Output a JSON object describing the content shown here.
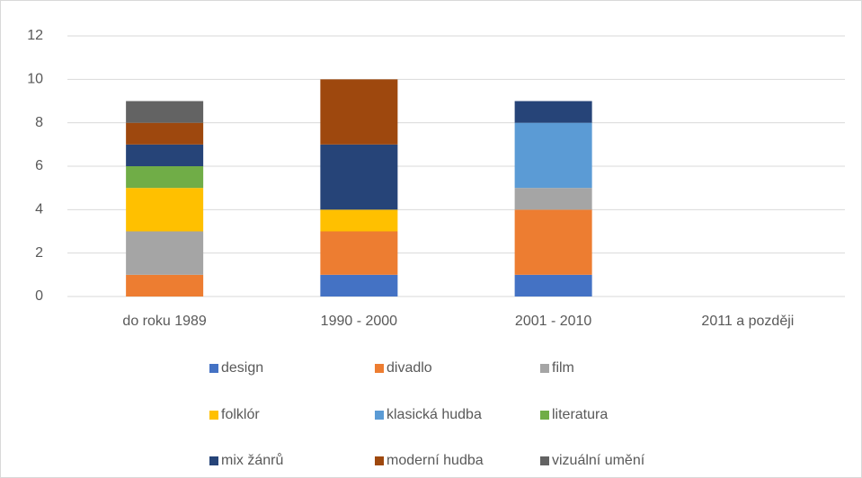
{
  "chart_data": {
    "type": "stacked_bar",
    "categories": [
      "do roku 1989",
      "1990 - 2000",
      "2001 - 2010",
      "2011 a později"
    ],
    "series": [
      {
        "name": "design",
        "color": "#4472c4",
        "values": [
          0,
          1,
          1,
          0
        ]
      },
      {
        "name": "divadlo",
        "color": "#ed7d31",
        "values": [
          1,
          2,
          3,
          0
        ]
      },
      {
        "name": "film",
        "color": "#a5a5a5",
        "values": [
          2,
          0,
          1,
          0
        ]
      },
      {
        "name": "folklór",
        "color": "#ffc000",
        "values": [
          2,
          1,
          0,
          0
        ]
      },
      {
        "name": "klasická hudba",
        "color": "#5b9bd5",
        "values": [
          0,
          0,
          3,
          0
        ]
      },
      {
        "name": "literatura",
        "color": "#70ad47",
        "values": [
          1,
          0,
          0,
          0
        ]
      },
      {
        "name": "mix žánrů",
        "color": "#264478",
        "values": [
          1,
          3,
          1,
          0
        ]
      },
      {
        "name": "moderní hudba",
        "color": "#9e480e",
        "values": [
          1,
          3,
          0,
          0
        ]
      },
      {
        "name": "vizuální umění",
        "color": "#636363",
        "values": [
          1,
          0,
          0,
          0
        ]
      }
    ],
    "ylim": [
      0,
      12
    ],
    "yticks": [
      0,
      2,
      4,
      6,
      8,
      10,
      12
    ],
    "grid": true,
    "legend": "bottom"
  }
}
